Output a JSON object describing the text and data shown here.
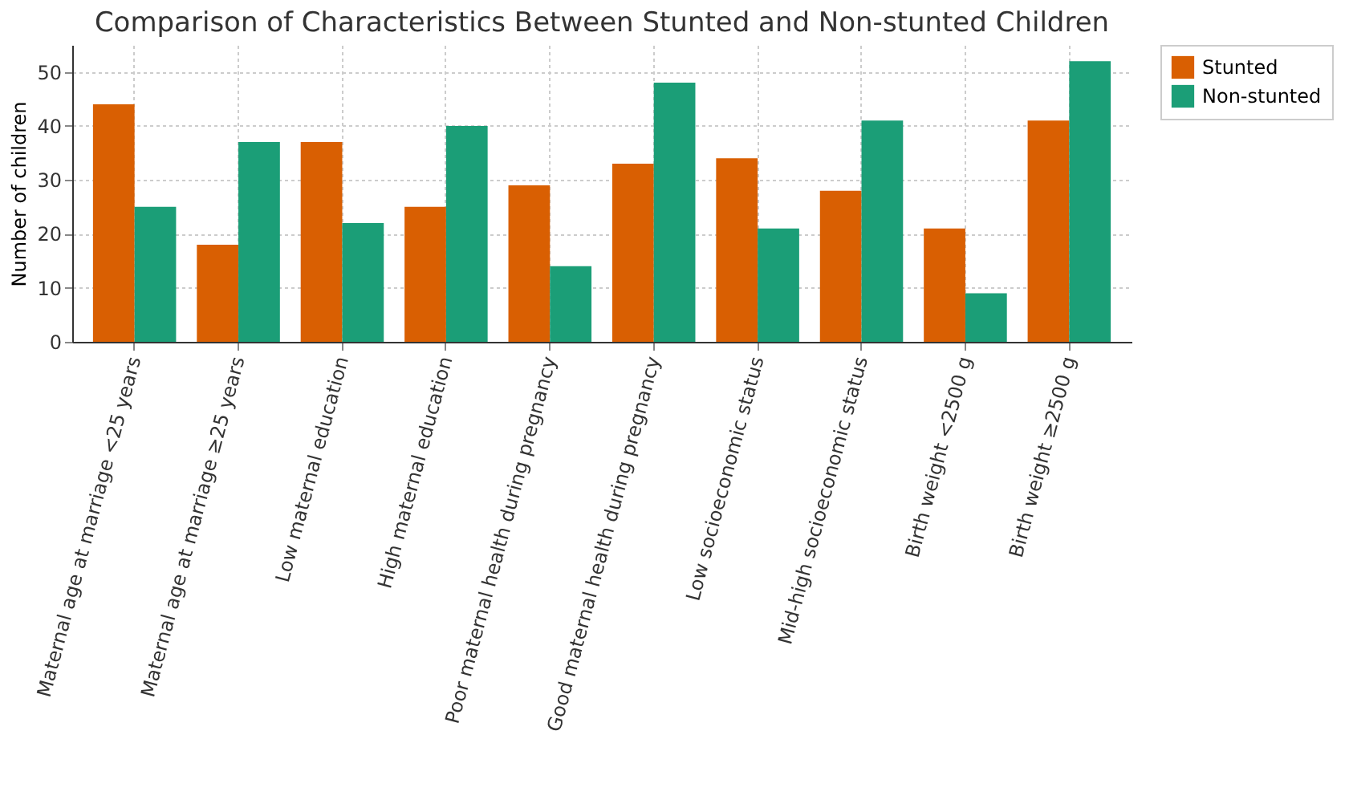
{
  "chart_data": {
    "type": "bar",
    "title": "Comparison of Characteristics Between Stunted and Non-stunted Children",
    "ylabel": "Number of children",
    "categories": [
      "Maternal age at marriage <25 years",
      "Maternal age at marriage ≥25 years",
      "Low maternal education",
      "High maternal education",
      "Poor maternal health during pregnancy",
      "Good maternal health during pregnancy",
      "Low socioeconomic status",
      "Mid-high socioeconomic status",
      "Birth weight <2500 g",
      "Birth weight ≥2500 g"
    ],
    "series": [
      {
        "name": "Stunted",
        "color": "#d95f02",
        "values": [
          44,
          18,
          37,
          25,
          29,
          33,
          34,
          28,
          21,
          41
        ]
      },
      {
        "name": "Non-stunted",
        "color": "#1b9e77",
        "values": [
          25,
          37,
          22,
          40,
          14,
          48,
          21,
          41,
          9,
          52
        ]
      }
    ],
    "ylim": [
      0,
      55
    ],
    "yticks": [
      0,
      10,
      20,
      30,
      40,
      50
    ],
    "grid": true,
    "legend": "top right"
  }
}
